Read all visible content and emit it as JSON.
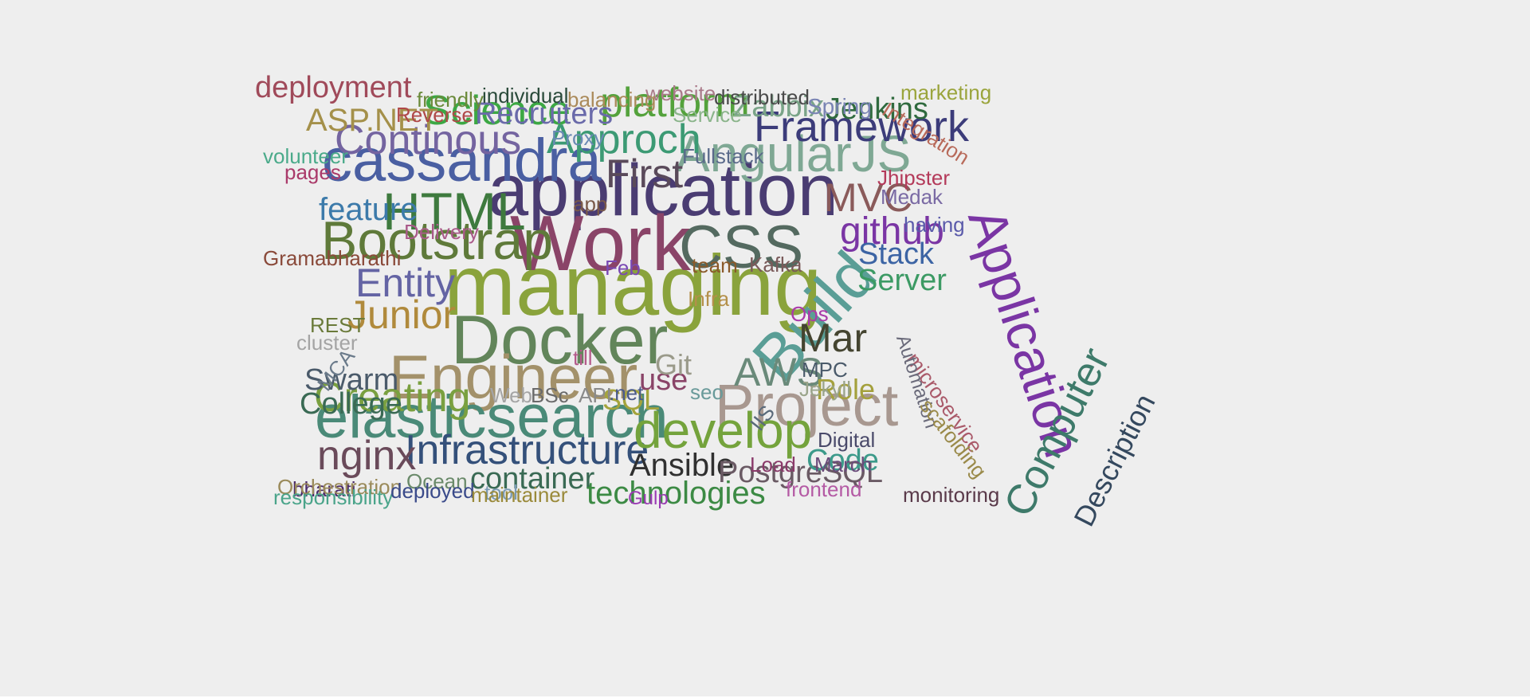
{
  "words": [
    {
      "text": "managing",
      "color": "#8aa33c"
    },
    {
      "text": "application",
      "color": "#4a3c72"
    },
    {
      "text": "Work",
      "color": "#8a4468"
    },
    {
      "text": "cassandra",
      "color": "#4a5fa2"
    },
    {
      "text": "Docker",
      "color": "#62855a"
    },
    {
      "text": "Engineer",
      "color": "#a3916a"
    },
    {
      "text": "elasticsearch",
      "color": "#4a8a78"
    },
    {
      "text": "CSS",
      "color": "#546a60"
    },
    {
      "text": "Application",
      "color": "#7a35a4"
    },
    {
      "text": "AngularJS",
      "color": "#7fa894"
    },
    {
      "text": "Bootstrap",
      "color": "#5f7a3a"
    },
    {
      "text": "Project",
      "color": "#a89890"
    },
    {
      "text": "Build",
      "color": "#5a9e96"
    },
    {
      "text": "Infrastructure",
      "color": "#34507a"
    },
    {
      "text": "develop",
      "color": "#74a33c"
    },
    {
      "text": "HTML",
      "color": "#3e7a3e"
    },
    {
      "text": "Computer",
      "color": "#3e7a6a"
    },
    {
      "text": "Continous",
      "color": "#7464a0"
    },
    {
      "text": "Creating",
      "color": "#7aa040"
    },
    {
      "text": "nginx",
      "color": "#6a4a5a"
    },
    {
      "text": "Framework",
      "color": "#3c3c7a"
    },
    {
      "text": "Science",
      "color": "#3ca844"
    },
    {
      "text": "Approch",
      "color": "#3c9a74"
    },
    {
      "text": "Entity",
      "color": "#6464a4"
    },
    {
      "text": "Junior",
      "color": "#b08a3c"
    },
    {
      "text": "platform",
      "color": "#54a23c"
    },
    {
      "text": "Mar",
      "color": "#444430"
    },
    {
      "text": "AWS",
      "color": "#6a8a7a"
    },
    {
      "text": "First",
      "color": "#5a4a5a"
    },
    {
      "text": "MVC",
      "color": "#8a5a5a"
    },
    {
      "text": "github",
      "color": "#7a35a4"
    },
    {
      "text": "Description",
      "color": "#34485e"
    },
    {
      "text": "feature",
      "color": "#3c7aaa"
    },
    {
      "text": "container",
      "color": "#3a6a54"
    },
    {
      "text": "technologies",
      "color": "#3c8a44"
    },
    {
      "text": "Ansible",
      "color": "#303030"
    },
    {
      "text": "PostgreSQL",
      "color": "#6a5a64"
    },
    {
      "text": "Jenkins",
      "color": "#2f6a3e"
    },
    {
      "text": "deployment",
      "color": "#a04a5a"
    },
    {
      "text": "ASP.NET",
      "color": "#a4904a"
    },
    {
      "text": "Recruiters",
      "color": "#6a6aaa"
    },
    {
      "text": "Zabbix",
      "color": "#7aa488"
    },
    {
      "text": "Swarm",
      "color": "#4a5a6a"
    },
    {
      "text": "College",
      "color": "#3a6a54"
    },
    {
      "text": "Stack",
      "color": "#3c64a4"
    },
    {
      "text": "Server",
      "color": "#3c9a64"
    },
    {
      "text": "Code",
      "color": "#3c9a8a"
    },
    {
      "text": "use",
      "color": "#8a4468"
    },
    {
      "text": "Git",
      "color": "#9a9a8a"
    },
    {
      "text": "Role",
      "color": "#a4a03c"
    },
    {
      "text": "SQL",
      "color": "#a4a43c"
    },
    {
      "text": "Integration",
      "color": "#b86a5a"
    },
    {
      "text": "marketing",
      "color": "#9aa43c"
    },
    {
      "text": "Spring",
      "color": "#7a84b4"
    },
    {
      "text": "distributed",
      "color": "#4a4a4a"
    },
    {
      "text": "website",
      "color": "#aa7a8a"
    },
    {
      "text": "balancing",
      "color": "#aa8a5a"
    },
    {
      "text": "individual",
      "color": "#2a4a3a"
    },
    {
      "text": "friendly",
      "color": "#6a8a3a"
    },
    {
      "text": "Reverse",
      "color": "#b04848"
    },
    {
      "text": "Service",
      "color": "#8ab48a"
    },
    {
      "text": "Proxy",
      "color": "#6a8ab4"
    },
    {
      "text": "Fullstack",
      "color": "#5a6a8a"
    },
    {
      "text": "volunteer",
      "color": "#4aaa8a"
    },
    {
      "text": "pages",
      "color": "#aa3a6a"
    },
    {
      "text": "Jhipster",
      "color": "#b43a5a"
    },
    {
      "text": "Medak",
      "color": "#7a6aa4"
    },
    {
      "text": "having",
      "color": "#5a5aaa"
    },
    {
      "text": "app",
      "color": "#7a5a4a"
    },
    {
      "text": "Delivery",
      "color": "#aa5a8a"
    },
    {
      "text": "Gramabharathi",
      "color": "#8a4a3a"
    },
    {
      "text": "Feb",
      "color": "#7a4ab4"
    },
    {
      "text": "team",
      "color": "#8a5a2a"
    },
    {
      "text": "Kafka",
      "color": "#7a5a5a"
    },
    {
      "text": "Infra",
      "color": "#b4904a"
    },
    {
      "text": "Ops",
      "color": "#aa3aaa"
    },
    {
      "text": "REST",
      "color": "#6a7a3a"
    },
    {
      "text": "cluster",
      "color": "#a4a4a4"
    },
    {
      "text": "MCA",
      "color": "#6a7a8a"
    },
    {
      "text": "till",
      "color": "#b45a8a"
    },
    {
      "text": "microservice",
      "color": "#aa5a6a"
    },
    {
      "text": "Automation",
      "color": "#6a6a7a"
    },
    {
      "text": "MPC",
      "color": "#4a5a6a"
    },
    {
      "text": "Jekyll",
      "color": "#9aa48a"
    },
    {
      "text": "seo",
      "color": "#6a9a9a"
    },
    {
      "text": "scafolding",
      "color": "#9a8a4a"
    },
    {
      "text": "Web",
      "color": "#a4a4a4"
    },
    {
      "text": "BSc",
      "color": "#6a6a6a"
    },
    {
      "text": "API",
      "color": "#8a8a8a"
    },
    {
      "text": ".net",
      "color": "#4a5a8a"
    },
    {
      "text": "IIS",
      "color": "#5a6a7a"
    },
    {
      "text": "Digital",
      "color": "#4a4a6a"
    },
    {
      "text": "Load",
      "color": "#8a3a6a"
    },
    {
      "text": "bharati",
      "color": "#4a2a6a"
    },
    {
      "text": "tool",
      "color": "#7a9ab4"
    },
    {
      "text": "Gulp",
      "color": "#9a3ab4"
    },
    {
      "text": "March",
      "color": "#6a4a7a"
    },
    {
      "text": "Orchestration",
      "color": "#9a8a5a"
    },
    {
      "text": "responsibility",
      "color": "#4aa48a"
    },
    {
      "text": "Ocean",
      "color": "#6a8a6a"
    },
    {
      "text": "deployed",
      "color": "#3a4a8a"
    },
    {
      "text": "maintainer",
      "color": "#9a8a3a"
    },
    {
      "text": "frontend",
      "color": "#b45aa4"
    },
    {
      "text": "monitoring",
      "color": "#5a3a4a"
    }
  ]
}
